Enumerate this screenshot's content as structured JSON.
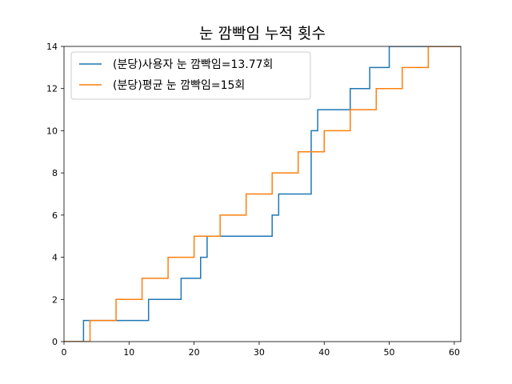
{
  "chart_data": {
    "type": "line",
    "drawstyle": "steps-post",
    "title": "눈 깜빡임 누적 횟수",
    "xlabel": "",
    "ylabel": "",
    "xlim": [
      0,
      61
    ],
    "ylim": [
      0,
      14
    ],
    "xticks": [
      0,
      10,
      20,
      30,
      40,
      50,
      60
    ],
    "yticks": [
      0,
      2,
      4,
      6,
      8,
      10,
      12,
      14
    ],
    "grid": false,
    "legend_position": "top-left",
    "series": [
      {
        "name": "(분당)사용자 눈 깜빡임=13.77회",
        "color": "#1f77b4",
        "x": [
          0,
          3,
          4,
          13,
          18,
          21,
          22,
          30,
          32,
          33,
          38,
          39,
          44,
          47,
          50
        ],
        "y": [
          0,
          1,
          1,
          2,
          3,
          4,
          5,
          5,
          6,
          7,
          10,
          11,
          12,
          13,
          14
        ]
      },
      {
        "name": "(분당)평균 눈 깜빡임=15회",
        "color": "#ff7f0e",
        "x": [
          0,
          4,
          8,
          12,
          16,
          20,
          24,
          28,
          32,
          36,
          40,
          44,
          48,
          52,
          56
        ],
        "y": [
          0,
          1,
          2,
          3,
          4,
          5,
          6,
          7,
          8,
          9,
          10,
          11,
          12,
          13,
          14
        ]
      }
    ]
  }
}
